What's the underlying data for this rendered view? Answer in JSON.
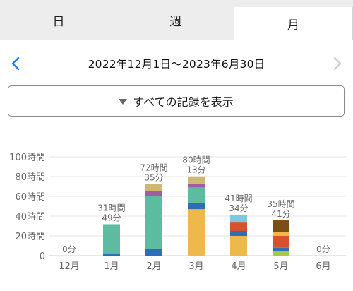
{
  "tabs": [
    {
      "label": "日",
      "active": false
    },
    {
      "label": "週",
      "active": false
    },
    {
      "label": "月",
      "active": true
    }
  ],
  "date_range": "2022年12月1日〜2023年6月30日",
  "filter_label": "すべての記録を表示",
  "colors": {
    "accent": "#2a7ee6",
    "teal": "#5dbba0",
    "blue": "#2f6db5",
    "amber": "#ecb94a",
    "khaki": "#cdb874",
    "purple": "#a45aa6",
    "red": "#d9502f",
    "brown": "#7a4e17",
    "lime": "#a9c64a",
    "light_blue": "#7ec6e3"
  },
  "chart_data": {
    "type": "bar",
    "stacked": true,
    "categories": [
      "12月",
      "1月",
      "2月",
      "3月",
      "4月",
      "5月",
      "6月"
    ],
    "ylim": [
      0,
      100
    ],
    "yticks": [
      0,
      20,
      40,
      60,
      80,
      100
    ],
    "ytick_labels": [
      "0",
      "20時間",
      "40時間",
      "60時間",
      "80時間",
      "100時間"
    ],
    "grid": true,
    "totals": [
      [
        "0分"
      ],
      [
        "31時間",
        "49分"
      ],
      [
        "72時間",
        "35分"
      ],
      [
        "80時間",
        "13分"
      ],
      [
        "41時間",
        "34分"
      ],
      [
        "35時間",
        "41分"
      ],
      [
        "0分"
      ]
    ],
    "series": [
      {
        "color": "#ecb94a",
        "values": [
          0,
          0,
          0,
          47,
          20,
          0,
          0
        ]
      },
      {
        "color": "#a9c64a",
        "values": [
          0,
          0,
          0,
          0,
          0,
          5,
          0
        ]
      },
      {
        "color": "#2f6db5",
        "values": [
          0,
          2,
          7,
          6,
          5,
          3,
          0
        ]
      },
      {
        "color": "#5dbba0",
        "values": [
          0,
          29.8,
          53.5,
          16,
          0,
          0,
          0
        ]
      },
      {
        "color": "#d9502f",
        "values": [
          0,
          0,
          0,
          0,
          8.5,
          12,
          0
        ]
      },
      {
        "color": "#7ec6e3",
        "values": [
          0,
          0,
          0,
          0,
          8,
          0,
          0
        ]
      },
      {
        "color": "#ecb94a",
        "values": [
          0,
          0,
          0,
          0,
          0,
          4,
          0
        ]
      },
      {
        "color": "#a45aa6",
        "values": [
          0,
          0,
          5,
          4,
          0,
          0,
          0
        ]
      },
      {
        "color": "#7a4e17",
        "values": [
          0,
          0,
          0,
          0,
          0,
          11.7,
          0
        ]
      },
      {
        "color": "#cdb874",
        "values": [
          0,
          0,
          7,
          7.2,
          0,
          0,
          0
        ]
      }
    ]
  }
}
